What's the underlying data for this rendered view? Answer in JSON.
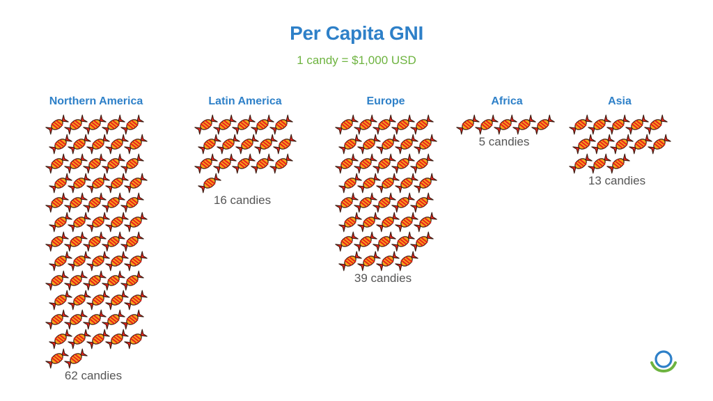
{
  "chart_data": {
    "type": "pictogram",
    "title": "Per Capita GNI",
    "subtitle": "1 candy = $1,000 USD",
    "unit_value": 1000,
    "unit_currency": "USD",
    "categories": [
      "Northern America",
      "Latin America",
      "Europe",
      "Africa",
      "Asia"
    ],
    "values": [
      62,
      16,
      39,
      5,
      13
    ],
    "count_labels": [
      "62 candies",
      "16 candies",
      "39 candies",
      "5 candies",
      "13 candies"
    ]
  },
  "colors": {
    "title": "#2E80C8",
    "subtitle": "#6DB33F",
    "category_label": "#2E80C8",
    "count_label": "#555555",
    "candy_body": "#F9A21B",
    "candy_stripe": "#E8231C",
    "candy_wrapper": "#E8231C",
    "candy_outline": "#3A1A10",
    "logo_blue": "#2E80C8",
    "logo_green": "#6DB33F"
  },
  "icons": {
    "unit": "wrapped-candy-icon",
    "logo": "ring-logo-icon"
  }
}
